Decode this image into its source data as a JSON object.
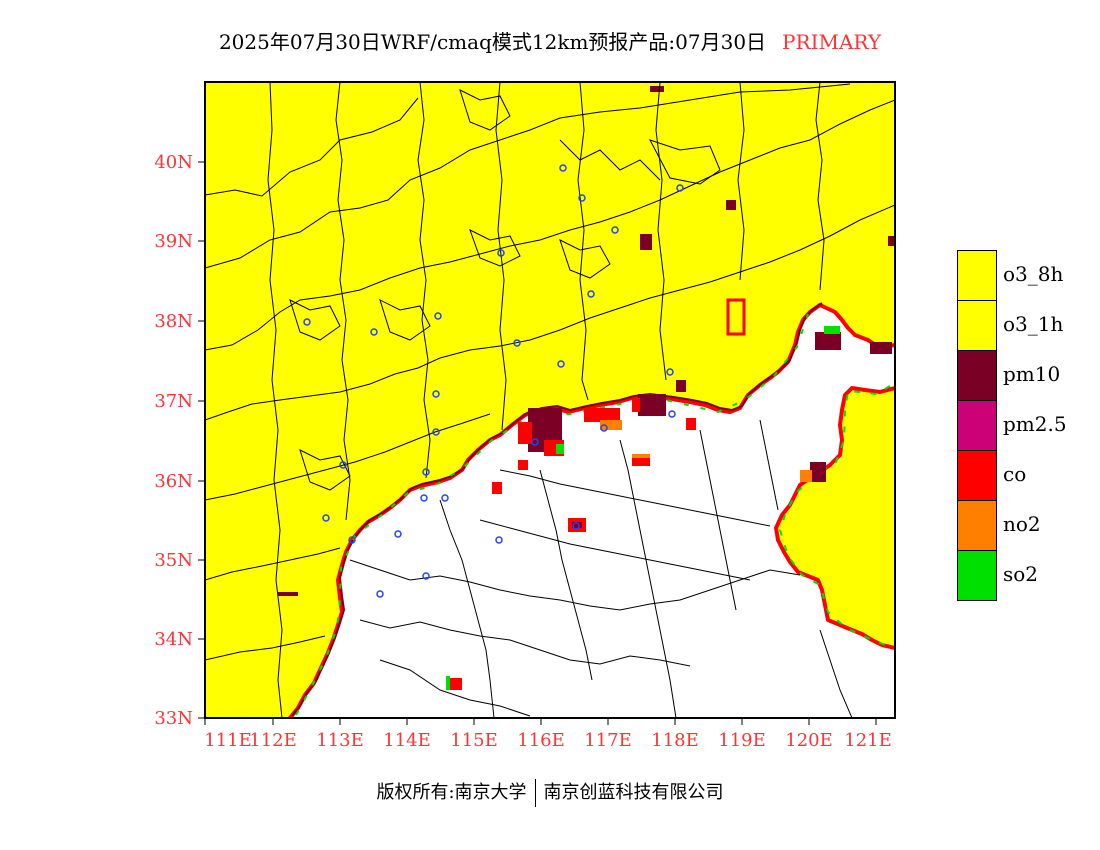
{
  "title": {
    "main": "2025年07月30日WRF/cmaq模式12km预报产品:07月30日",
    "tag": "PRIMARY",
    "tag_color": "#ff3333"
  },
  "axes": {
    "lat_labels": [
      "40N",
      "39N",
      "38N",
      "37N",
      "36N",
      "35N",
      "34N",
      "33N"
    ],
    "lon_labels": [
      "111E",
      "112E",
      "113E",
      "114E",
      "115E",
      "116E",
      "117E",
      "118E",
      "119E",
      "120E",
      "121E"
    ],
    "label_color": "#ff3333"
  },
  "legend": [
    {
      "label": "o3_8h",
      "color": "#ffff00"
    },
    {
      "label": "o3_1h",
      "color": "#ffff00"
    },
    {
      "label": "pm10",
      "color": "#7a0026"
    },
    {
      "label": "pm2.5",
      "color": "#cc0077"
    },
    {
      "label": "co",
      "color": "#ff0000"
    },
    {
      "label": "no2",
      "color": "#ff7f00"
    },
    {
      "label": "so2",
      "color": "#00e000"
    }
  ],
  "footer": {
    "left": "版权所有:南京大学",
    "right": "南京创蓝科技有限公司"
  },
  "map": {
    "primary_pollutant_fill": "#ffff00",
    "border_color": "#000000",
    "city_marker_color": "#2244ff"
  }
}
